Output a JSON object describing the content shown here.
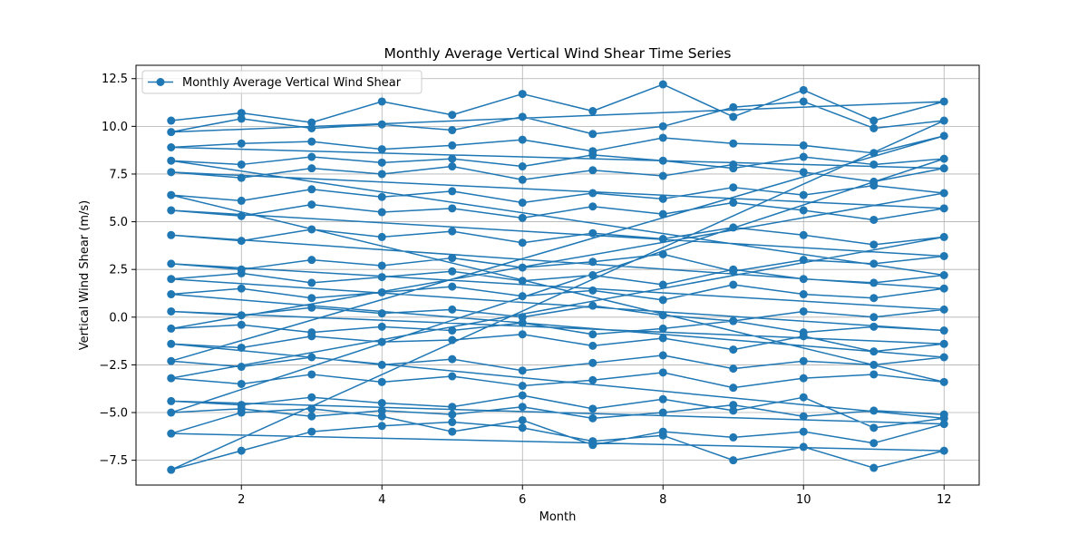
{
  "colors": {
    "series": "#1f77b4",
    "grid": "#b0b0b0",
    "axis": "#000000",
    "background": "#ffffff"
  },
  "chart_data": {
    "type": "line",
    "title": "Monthly Average Vertical Wind Shear Time Series",
    "xlabel": "Month",
    "ylabel": "Vertical Wind Shear (m/s)",
    "xlim": [
      0.5,
      12.5
    ],
    "ylim": [
      -8.8,
      13.2
    ],
    "xticks": [
      2,
      4,
      6,
      8,
      10,
      12
    ],
    "yticks": [
      -7.5,
      -5.0,
      -2.5,
      0.0,
      2.5,
      5.0,
      7.5,
      10.0,
      12.5
    ],
    "xtick_labels": [
      "2",
      "4",
      "6",
      "8",
      "10",
      "12"
    ],
    "ytick_labels": [
      "−7.5",
      "−5.0",
      "−2.5",
      "0.0",
      "2.5",
      "5.0",
      "7.5",
      "10.0",
      "12.5"
    ],
    "grid": true,
    "legend_position": "top-left",
    "series": [
      {
        "name": "Monthly Average Vertical Wind Shear",
        "color": "#1f77b4",
        "marker": "circle",
        "x": [
          1,
          2,
          3,
          4,
          5,
          6,
          7,
          8,
          9,
          10,
          11,
          12,
          1,
          2,
          3,
          4,
          5,
          6,
          7,
          8,
          9,
          10,
          11,
          12,
          1,
          2,
          3,
          4,
          5,
          6,
          7,
          8,
          9,
          10,
          11,
          12,
          1,
          2,
          3,
          4,
          5,
          6,
          7,
          8,
          9,
          10,
          11,
          12,
          1,
          2,
          3,
          4,
          5,
          6,
          7,
          8,
          9,
          10,
          11,
          12,
          1,
          2,
          3,
          4,
          5,
          6,
          7,
          8,
          9,
          10,
          11,
          12,
          1,
          2,
          3,
          4,
          5,
          6,
          7,
          8,
          9,
          10,
          11,
          12,
          1,
          2,
          3,
          4,
          5,
          6,
          7,
          8,
          9,
          10,
          11,
          12,
          1,
          2,
          3,
          4,
          5,
          6,
          7,
          8,
          9,
          10,
          11,
          12,
          1,
          2,
          3,
          4,
          5,
          6,
          7,
          8,
          9,
          10,
          11,
          12,
          1,
          2,
          3,
          4,
          5,
          6,
          7,
          8,
          9,
          10,
          11,
          12,
          1,
          2,
          3,
          4,
          5,
          6,
          7,
          8,
          9,
          10,
          11,
          12,
          1,
          2,
          3,
          4,
          5,
          6,
          7,
          8,
          9,
          10,
          11,
          12,
          1,
          2,
          3,
          4,
          5,
          6,
          7,
          8,
          9,
          10,
          11,
          12,
          1,
          2,
          3,
          4,
          5,
          6,
          7,
          8,
          9,
          10,
          11,
          12,
          1,
          2,
          3,
          4,
          5,
          6,
          7,
          8,
          9,
          10,
          11,
          12,
          1,
          2,
          3,
          4,
          5,
          6,
          7,
          8,
          9,
          10,
          11,
          12,
          1,
          2,
          3,
          4,
          5,
          6,
          7,
          8,
          9,
          10,
          11,
          12,
          1,
          2,
          3,
          4,
          5,
          6,
          7,
          8,
          9,
          10,
          11,
          12,
          1,
          2,
          3,
          4,
          5,
          6,
          7,
          8,
          9,
          10,
          11,
          12
        ],
        "y": [
          10.3,
          10.7,
          10.2,
          11.3,
          10.6,
          11.7,
          10.8,
          12.2,
          10.5,
          11.9,
          10.3,
          11.3,
          9.7,
          10.4,
          9.9,
          10.1,
          9.8,
          10.5,
          9.6,
          10.0,
          11.0,
          11.3,
          9.9,
          10.3,
          -8.0,
          -7.0,
          -6.0,
          -5.7,
          -5.5,
          -5.8,
          -6.5,
          -6.2,
          -7.5,
          -6.8,
          -7.9,
          -7.0,
          -6.1,
          -5.0,
          -4.8,
          -5.2,
          -6.0,
          -5.4,
          -6.7,
          -6.0,
          -6.3,
          -6.0,
          -6.6,
          -5.6,
          -4.4,
          -4.6,
          -4.2,
          -4.5,
          -4.7,
          -4.1,
          -4.8,
          -4.3,
          -4.9,
          -4.2,
          -5.8,
          -5.3,
          -1.4,
          -1.6,
          -1.0,
          -1.3,
          -1.2,
          -0.9,
          -1.5,
          -1.1,
          -1.7,
          -1.0,
          -1.8,
          -1.4,
          0.3,
          0.1,
          0.5,
          0.2,
          0.4,
          0.0,
          0.6,
          0.1,
          -0.2,
          0.3,
          0.0,
          0.4,
          2.8,
          2.5,
          3.0,
          2.7,
          3.1,
          2.6,
          2.9,
          3.3,
          2.4,
          3.0,
          2.8,
          3.2,
          5.6,
          5.3,
          5.9,
          5.5,
          5.7,
          5.2,
          5.8,
          5.4,
          6.0,
          5.6,
          5.1,
          5.7,
          7.6,
          7.3,
          7.8,
          7.5,
          7.9,
          7.2,
          7.7,
          7.4,
          8.0,
          7.6,
          7.1,
          7.8,
          8.9,
          9.1,
          9.2,
          8.8,
          9.0,
          9.3,
          8.7,
          9.4,
          9.1,
          9.0,
          8.6,
          9.5,
          -2.3,
          -2.6,
          -2.1,
          -2.5,
          -2.2,
          -2.8,
          -2.4,
          -2.0,
          -2.7,
          -2.3,
          -2.5,
          -2.1,
          1.2,
          1.5,
          1.0,
          1.3,
          1.6,
          1.1,
          1.4,
          0.9,
          1.7,
          1.2,
          1.0,
          1.5,
          4.3,
          4.0,
          4.6,
          4.2,
          4.5,
          3.9,
          4.4,
          4.1,
          4.7,
          4.3,
          3.8,
          4.2,
          -3.2,
          -3.5,
          -3.0,
          -3.4,
          -3.1,
          -3.6,
          -3.3,
          -2.9,
          -3.7,
          -3.2,
          -3.0,
          -3.4,
          6.4,
          6.1,
          6.7,
          6.3,
          6.6,
          6.0,
          6.5,
          6.2,
          6.8,
          6.4,
          6.9,
          6.5,
          -0.6,
          -0.4,
          -0.8,
          -0.5,
          -0.7,
          -0.3,
          -0.9,
          -0.6,
          -0.2,
          -0.8,
          -0.5,
          -0.7,
          2.0,
          2.3,
          1.8,
          2.1,
          2.4,
          1.9,
          2.2,
          1.7,
          2.5,
          2.0,
          1.8,
          2.2,
          8.2,
          8.0,
          8.4,
          8.1,
          8.3,
          7.9,
          8.5,
          8.2,
          7.8,
          8.4,
          8.0,
          8.3,
          -5.0,
          -4.8,
          -5.2,
          -4.9,
          -5.1,
          -4.7,
          -5.3,
          -5.0,
          -4.6,
          -5.2,
          -4.9,
          -5.1
        ]
      }
    ]
  }
}
